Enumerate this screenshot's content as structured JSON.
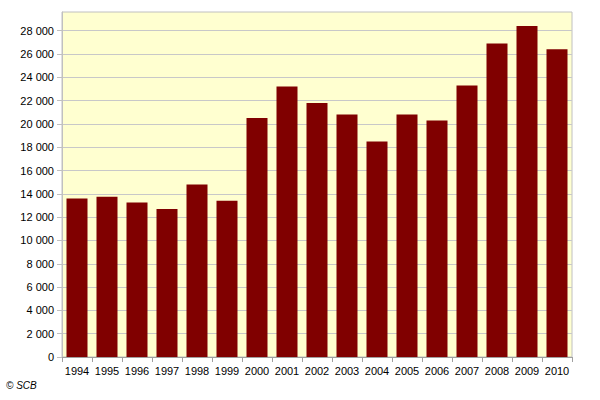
{
  "chart_data": {
    "type": "bar",
    "categories": [
      "1994",
      "1995",
      "1996",
      "1997",
      "1998",
      "1999",
      "2000",
      "2001",
      "2002",
      "2003",
      "2004",
      "2005",
      "2006",
      "2007",
      "2008",
      "2009",
      "2010"
    ],
    "values": [
      13600,
      13750,
      13250,
      12700,
      14800,
      13400,
      20500,
      23200,
      21800,
      20800,
      18500,
      20800,
      20300,
      23300,
      26900,
      28400,
      26400
    ],
    "color": "#800000",
    "ylim": [
      0,
      29600
    ],
    "yticks": [
      0,
      {
        "value": 2000,
        "label": "2 000"
      },
      {
        "value": 4000,
        "label": "4 000"
      },
      {
        "value": 6000,
        "label": "6 000"
      },
      {
        "value": 8000,
        "label": "8 000"
      },
      {
        "value": 10000,
        "label": "10 000"
      },
      {
        "value": 12000,
        "label": "12 000"
      },
      {
        "value": 14000,
        "label": "14 000"
      },
      {
        "value": 16000,
        "label": "16 000"
      },
      {
        "value": 18000,
        "label": "18 000"
      },
      {
        "value": 20000,
        "label": "20 000"
      },
      {
        "value": 22000,
        "label": "22 000"
      },
      {
        "value": 24000,
        "label": "24 000"
      },
      {
        "value": 26000,
        "label": "26 000"
      },
      {
        "value": 28000,
        "label": "28 000"
      }
    ],
    "grid": true,
    "source": "© SCB"
  }
}
